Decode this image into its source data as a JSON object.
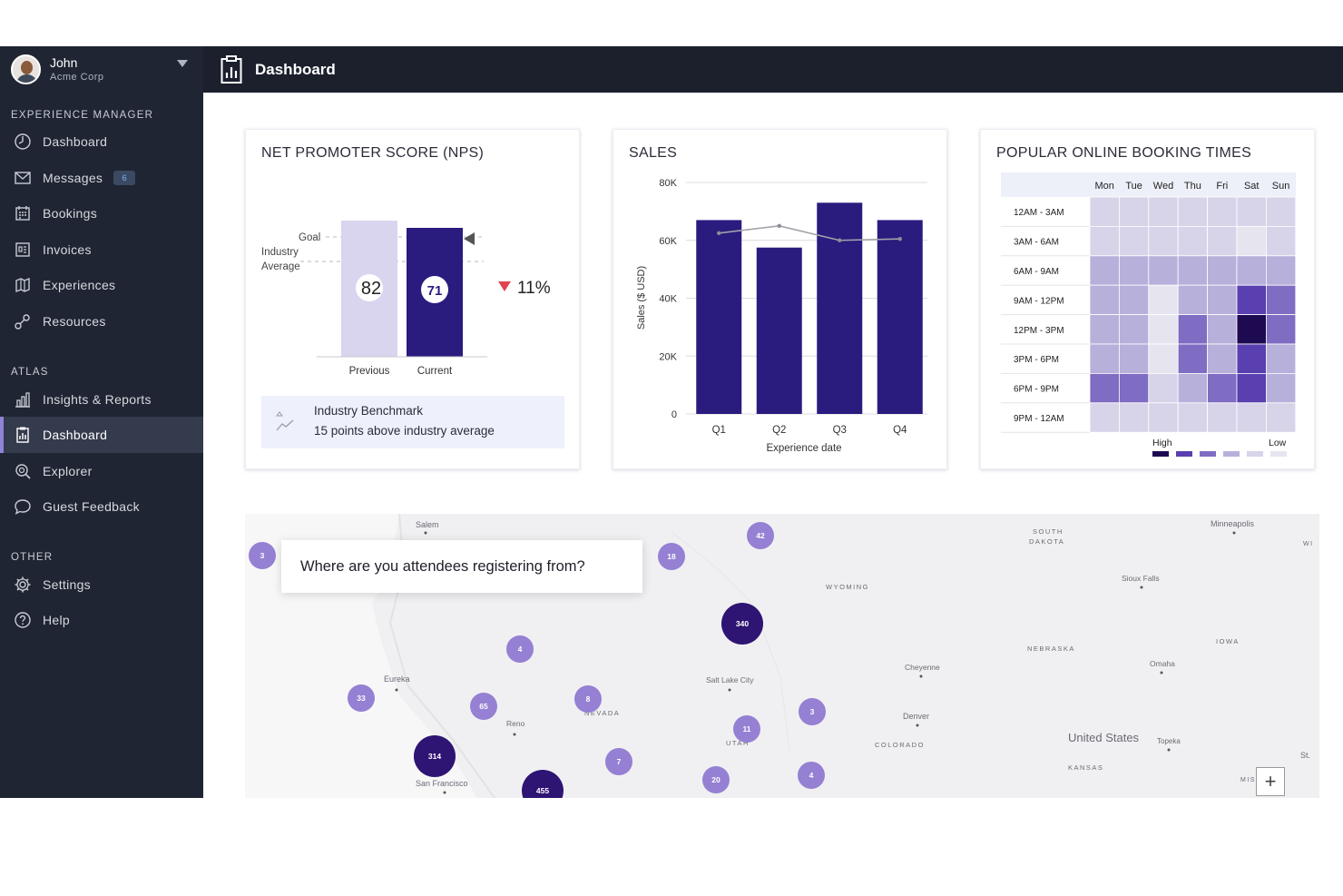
{
  "user": {
    "name": "John",
    "org": "Acme Corp"
  },
  "sidebar": {
    "sections": [
      {
        "title": "EXPERIENCE MANAGER",
        "items": [
          {
            "label": "Dashboard",
            "icon": "dashboard-gauge-icon"
          },
          {
            "label": "Messages",
            "icon": "envelope-icon",
            "badge": "6"
          },
          {
            "label": "Bookings",
            "icon": "calendar-icon"
          },
          {
            "label": "Invoices",
            "icon": "invoice-icon"
          },
          {
            "label": "Experiences",
            "icon": "map-icon"
          },
          {
            "label": "Resources",
            "icon": "nodes-icon"
          }
        ]
      },
      {
        "title": "ATLAS",
        "items": [
          {
            "label": "Insights & Reports",
            "icon": "bar-chart-icon"
          },
          {
            "label": "Dashboard",
            "icon": "clipboard-chart-icon",
            "active": true
          },
          {
            "label": "Explorer",
            "icon": "magnifier-icon"
          },
          {
            "label": "Guest Feedback",
            "icon": "speech-bubble-icon"
          }
        ]
      },
      {
        "title": "OTHER",
        "items": [
          {
            "label": "Settings",
            "icon": "gear-icon"
          },
          {
            "label": "Help",
            "icon": "help-icon"
          }
        ]
      }
    ]
  },
  "header": {
    "title": "Dashboard"
  },
  "nps": {
    "title": "NET PROMOTER SCORE (NPS)",
    "goal_label": "Goal",
    "industry_label_1": "Industry",
    "industry_label_2": "Average",
    "previous": {
      "label": "Previous",
      "value": 82
    },
    "current": {
      "label": "Current",
      "value": 71
    },
    "change": "11%",
    "change_direction": "down",
    "benchmark_title": "Industry Benchmark",
    "benchmark_text": "15 points above industry average",
    "colors": {
      "previous": "#d9d5ef",
      "current": "#2a1b7f",
      "down": "#e0454f"
    }
  },
  "chart_data": [
    {
      "type": "bar",
      "title": "SALES",
      "categories": [
        "Q1",
        "Q2",
        "Q3",
        "Q4"
      ],
      "values": [
        67000,
        57500,
        73000,
        67000
      ],
      "line_values": [
        62500,
        65000,
        60000,
        60500
      ],
      "xlabel": "Experience date",
      "ylabel": "Sales ($ USD)",
      "ylim": [
        0,
        80000
      ],
      "yticks": [
        "0",
        "20K",
        "40K",
        "60K",
        "80K"
      ],
      "grid": true,
      "colors": {
        "bar": "#2a1b7f",
        "line": "#a2a2aa"
      }
    },
    {
      "type": "heatmap",
      "title": "POPULAR ONLINE BOOKING TIMES",
      "columns": [
        "Mon",
        "Tue",
        "Wed",
        "Thu",
        "Fri",
        "Sat",
        "Sun"
      ],
      "rows": [
        "12AM - 3AM",
        "3AM - 6AM",
        "6AM - 9AM",
        "9AM - 12PM",
        "12PM - 3PM",
        "3PM - 6PM",
        "6PM - 9PM",
        "9PM - 12AM"
      ],
      "levels": [
        [
          5,
          5,
          5,
          5,
          5,
          5,
          5
        ],
        [
          5,
          5,
          5,
          5,
          5,
          6,
          5
        ],
        [
          4,
          4,
          4,
          4,
          4,
          4,
          4
        ],
        [
          4,
          4,
          6,
          4,
          4,
          2,
          3
        ],
        [
          4,
          4,
          6,
          3,
          4,
          1,
          3
        ],
        [
          4,
          4,
          6,
          3,
          4,
          2,
          4
        ],
        [
          3,
          3,
          5,
          4,
          3,
          2,
          4
        ],
        [
          5,
          5,
          5,
          5,
          5,
          5,
          5
        ]
      ],
      "legend_high": "High",
      "legend_low": "Low",
      "palette": [
        "#1e0a50",
        "#5a3fb0",
        "#7f6cc3",
        "#b7b0db",
        "#d7d4ea",
        "#e6e5ef"
      ]
    }
  ],
  "map": {
    "question": "Where are you attendees registering from?",
    "zoom_label": "+",
    "places": [
      "Salem",
      "Eureka",
      "Reno",
      "San Francisco",
      "Salt Lake City",
      "Cheyenne",
      "Denver",
      "Omaha",
      "Sioux Falls",
      "Minneapolis",
      "Topeka",
      "United States",
      "SOUTH",
      "DAKOTA",
      "WYOMING",
      "NEBRASKA",
      "NEVADA",
      "UTAH",
      "COLORADO",
      "KANSAS",
      "IOWA",
      "St.",
      "WI",
      "MIS"
    ],
    "clusters": [
      {
        "label": "3",
        "size": "small"
      },
      {
        "label": "42",
        "size": "small"
      },
      {
        "label": "18",
        "size": "small"
      },
      {
        "label": "340",
        "size": "large"
      },
      {
        "label": "4",
        "size": "small"
      },
      {
        "label": "33",
        "size": "small"
      },
      {
        "label": "65",
        "size": "small"
      },
      {
        "label": "8",
        "size": "small"
      },
      {
        "label": "3",
        "size": "small"
      },
      {
        "label": "11",
        "size": "small"
      },
      {
        "label": "314",
        "size": "large"
      },
      {
        "label": "7",
        "size": "small"
      },
      {
        "label": "20",
        "size": "small"
      },
      {
        "label": "4",
        "size": "small"
      },
      {
        "label": "455",
        "size": "large"
      }
    ],
    "colors": {
      "small": "#9580d3",
      "large": "#2e1473"
    }
  }
}
